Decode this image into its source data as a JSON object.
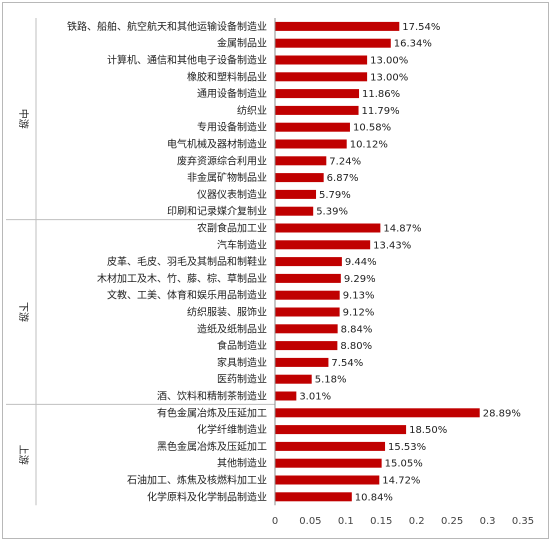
{
  "chart_data": {
    "type": "bar",
    "orientation": "horizontal",
    "xlim": [
      0,
      0.35
    ],
    "xticks": [
      "0",
      "0.05",
      "0.1",
      "0.15",
      "0.2",
      "0.25",
      "0.3",
      "0.35"
    ],
    "bar_color": "#c00000",
    "grid": false,
    "groups": [
      {
        "name": "中游",
        "categories": [
          "铁路、船舶、航空航天和其他运输设备制造业",
          "金属制品业",
          "计算机、通信和其他电子设备制造业",
          "橡胶和塑料制品业",
          "通用设备制造业",
          "纺织业",
          "专用设备制造业",
          "电气机械及器材制造业",
          "废弃资源综合利用业",
          "非金属矿物制品业",
          "仪器仪表制造业",
          "印刷和记录媒介复制业"
        ],
        "values": [
          0.1754,
          0.1634,
          0.13,
          0.13,
          0.1186,
          0.1179,
          0.1058,
          0.1012,
          0.0724,
          0.0687,
          0.0579,
          0.0539
        ],
        "labels": [
          "17.54%",
          "16.34%",
          "13.00%",
          "13.00%",
          "11.86%",
          "11.79%",
          "10.58%",
          "10.12%",
          "7.24%",
          "6.87%",
          "5.79%",
          "5.39%"
        ]
      },
      {
        "name": "下游",
        "categories": [
          "农副食品加工业",
          "汽车制造业",
          "皮革、毛皮、羽毛及其制品和制鞋业",
          "木材加工及木、竹、藤、棕、草制品业",
          "文教、工美、体育和娱乐用品制造业",
          "纺织服装、服饰业",
          "造纸及纸制品业",
          "食品制造业",
          "家具制造业",
          "医药制造业",
          "酒、饮料和精制茶制造业"
        ],
        "values": [
          0.1487,
          0.1343,
          0.0944,
          0.0929,
          0.0913,
          0.0912,
          0.0884,
          0.088,
          0.0754,
          0.0518,
          0.0301
        ],
        "labels": [
          "14.87%",
          "13.43%",
          "9.44%",
          "9.29%",
          "9.13%",
          "9.12%",
          "8.84%",
          "8.80%",
          "7.54%",
          "5.18%",
          "3.01%"
        ]
      },
      {
        "name": "上游",
        "categories": [
          "有色金属冶炼及压延加工",
          "化学纤维制造业",
          "黑色金属冶炼及压延加工",
          "其他制造业",
          "石油加工、炼焦及核燃料加工业",
          "化学原料及化学制品制造业"
        ],
        "values": [
          0.2889,
          0.185,
          0.1553,
          0.1505,
          0.1472,
          0.1084
        ],
        "labels": [
          "28.89%",
          "18.50%",
          "15.53%",
          "15.05%",
          "14.72%",
          "10.84%"
        ]
      }
    ]
  }
}
